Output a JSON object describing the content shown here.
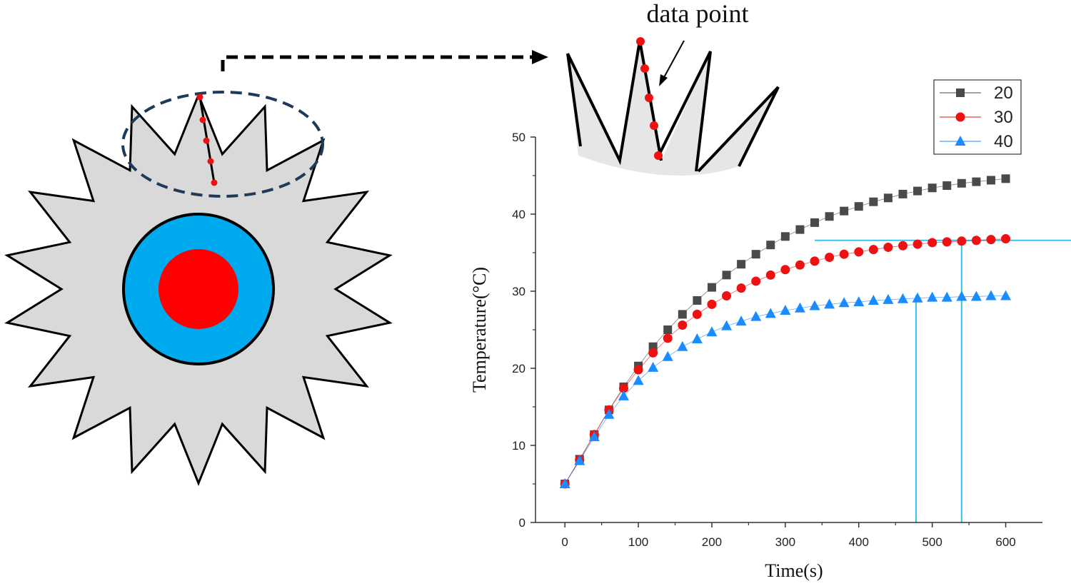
{
  "callout": {
    "label": "data point"
  },
  "chart_data": {
    "type": "scatter",
    "xlabel": "Time(s)",
    "ylabel": "Temperature(°C)",
    "xlim": [
      -40,
      650
    ],
    "ylim": [
      0,
      50
    ],
    "xticks": [
      0,
      100,
      200,
      300,
      400,
      500,
      600
    ],
    "yticks": [
      0,
      10,
      20,
      30,
      40,
      50
    ],
    "legend_position": "top-right",
    "x": [
      0,
      20,
      40,
      60,
      80,
      100,
      120,
      140,
      160,
      180,
      200,
      220,
      240,
      260,
      280,
      300,
      320,
      340,
      360,
      380,
      400,
      420,
      440,
      460,
      480,
      500,
      520,
      540,
      560,
      580,
      600
    ],
    "series": [
      {
        "name": "20",
        "marker": "square",
        "color": "#4a4a4a",
        "values": [
          5.0,
          8.2,
          11.4,
          14.6,
          17.6,
          20.3,
          22.8,
          25.0,
          27.0,
          28.8,
          30.5,
          32.1,
          33.5,
          34.8,
          36.0,
          37.1,
          38.0,
          38.9,
          39.7,
          40.4,
          41.0,
          41.6,
          42.1,
          42.6,
          43.0,
          43.4,
          43.7,
          44.0,
          44.2,
          44.4,
          44.6
        ]
      },
      {
        "name": "30",
        "marker": "circle",
        "color": "#ee1111",
        "values": [
          5.0,
          8.1,
          11.4,
          14.6,
          17.4,
          19.8,
          22.0,
          23.9,
          25.6,
          27.0,
          28.3,
          29.4,
          30.4,
          31.3,
          32.1,
          32.8,
          33.4,
          33.9,
          34.4,
          34.8,
          35.1,
          35.4,
          35.7,
          35.9,
          36.1,
          36.3,
          36.4,
          36.5,
          36.6,
          36.7,
          36.8
        ]
      },
      {
        "name": "40",
        "marker": "triangle",
        "color": "#1a8cff",
        "values": [
          5.0,
          8.0,
          11.1,
          14.0,
          16.4,
          18.4,
          20.1,
          21.5,
          22.8,
          23.8,
          24.7,
          25.5,
          26.1,
          26.7,
          27.1,
          27.5,
          27.8,
          28.1,
          28.3,
          28.5,
          28.6,
          28.8,
          28.9,
          29.0,
          29.1,
          29.2,
          29.2,
          29.3,
          29.3,
          29.4,
          29.4
        ]
      }
    ],
    "reference_lines": [
      {
        "orientation": "horizontal",
        "y": 36.6,
        "x_from": 340,
        "x_to": 690,
        "color": "#33c3f0"
      },
      {
        "orientation": "vertical",
        "x": 478,
        "y_from": 0,
        "y_to": 29.5,
        "color": "#33c3f0"
      },
      {
        "orientation": "vertical",
        "x": 540,
        "y_from": 0,
        "y_to": 36.6,
        "color": "#33c3f0"
      }
    ]
  }
}
